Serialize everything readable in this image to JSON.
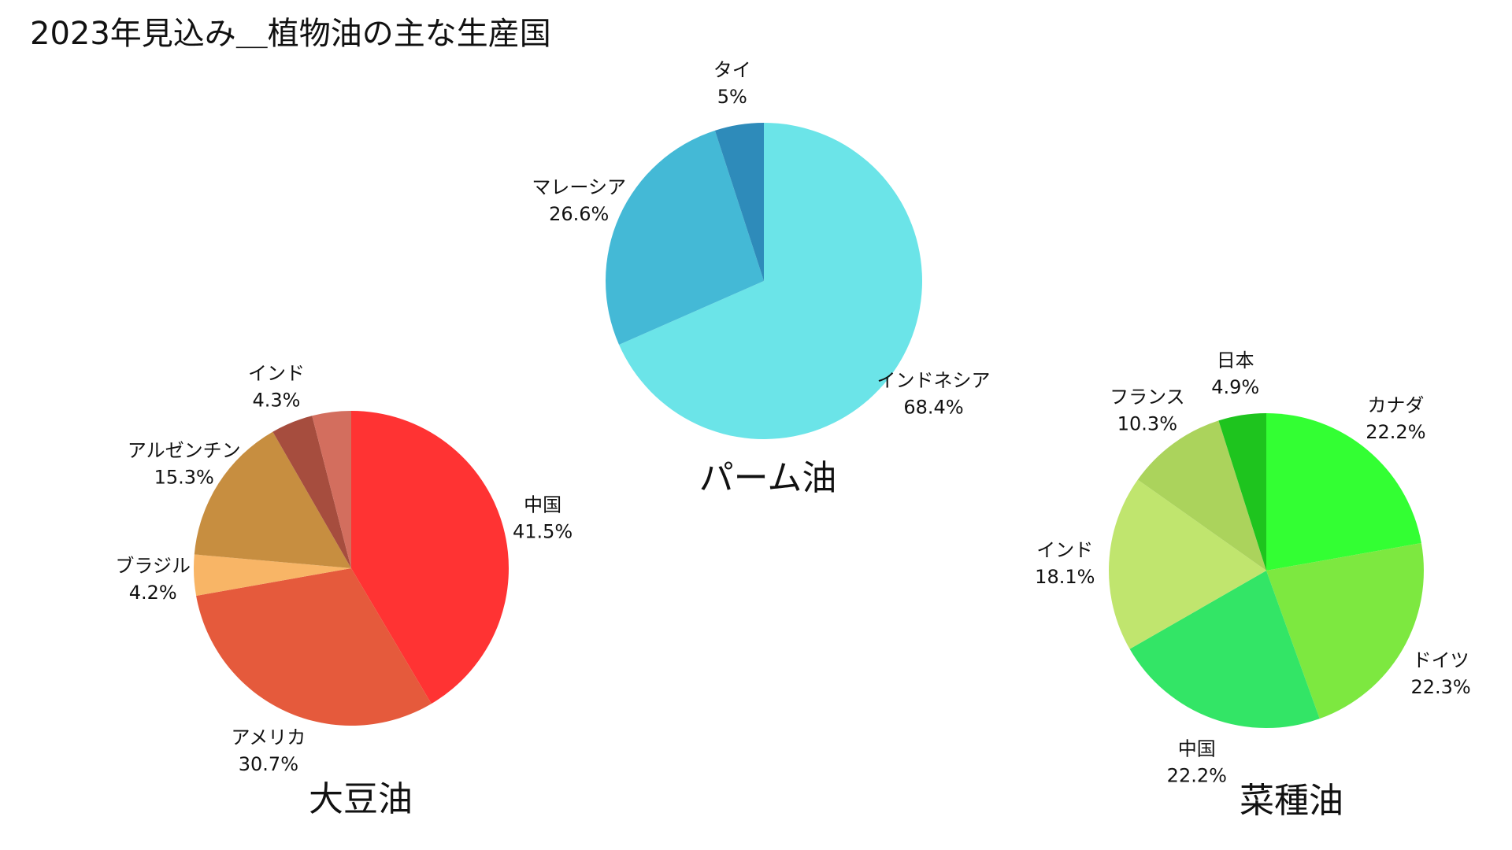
{
  "title": "2023年見込み＿植物油の主な生産国",
  "chart_data": [
    {
      "type": "pie",
      "title": "パーム油",
      "categories": [
        "インドネシア",
        "マレーシア",
        "タイ"
      ],
      "values": [
        68.4,
        26.6,
        5.0
      ],
      "labels": [
        "68.4%",
        "26.6%",
        "5%"
      ],
      "colors": [
        "#6BE4E8",
        "#44B9D6",
        "#2E8BBA"
      ],
      "start": "12 o'clock",
      "direction": "clockwise"
    },
    {
      "type": "pie",
      "title": "大豆油",
      "categories": [
        "中国",
        "アメリカ",
        "ブラジル",
        "アルゼンチン",
        "インド"
      ],
      "values": [
        41.5,
        30.7,
        4.2,
        15.3,
        4.3
      ],
      "labels": [
        "41.5%",
        "30.7%",
        "4.2%",
        "15.3%",
        "4.3%"
      ],
      "colors": [
        "#FF3333",
        "#E55A3C",
        "#F8B566",
        "#C78E40",
        "#A64D3E"
      ],
      "remainder_color": "#D36E5E",
      "start": "12 o'clock",
      "direction": "clockwise"
    },
    {
      "type": "pie",
      "title": "菜種油",
      "categories": [
        "カナダ",
        "ドイツ",
        "中国",
        "インド",
        "フランス",
        "日本"
      ],
      "values": [
        22.2,
        22.3,
        22.2,
        18.1,
        10.3,
        4.9
      ],
      "labels": [
        "22.2%",
        "22.3%",
        "22.2%",
        "18.1%",
        "10.3%",
        "4.9%"
      ],
      "colors": [
        "#33FF33",
        "#7DE840",
        "#33E566",
        "#C0E56E",
        "#ABD35C",
        "#1EC41E"
      ],
      "start": "12 o'clock",
      "direction": "clockwise"
    }
  ]
}
